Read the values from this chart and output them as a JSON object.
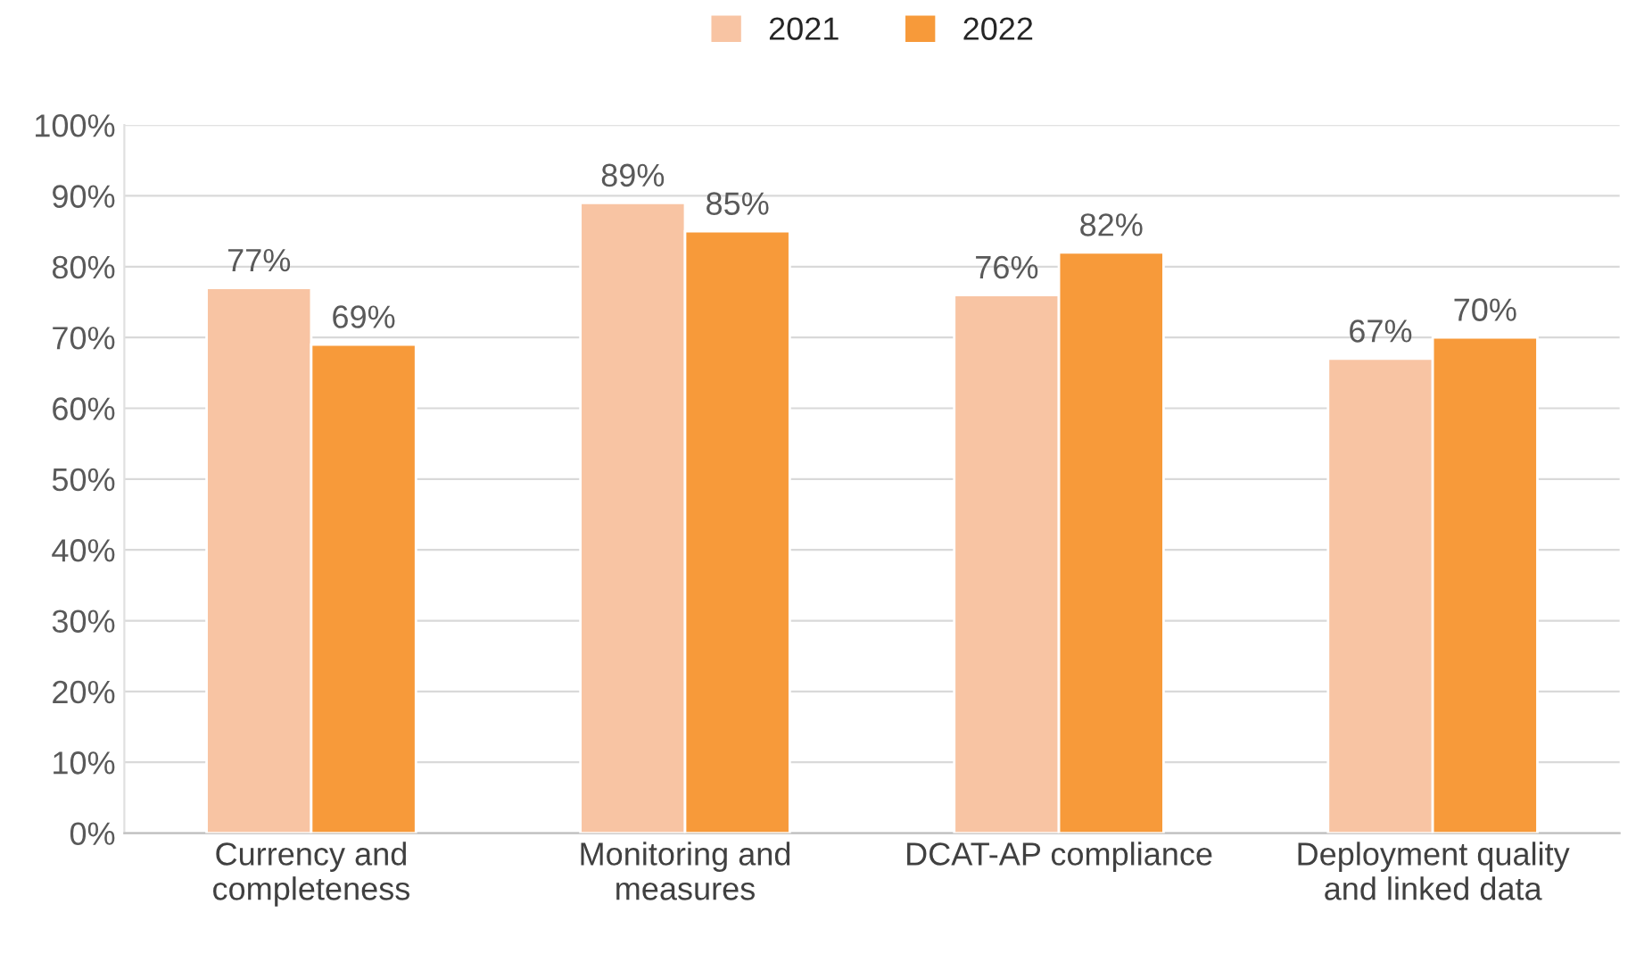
{
  "chart_data": {
    "type": "bar",
    "categories": [
      "Currency and\ncompleteness",
      "Monitoring and\nmeasures",
      "DCAT-AP compliance",
      "Deployment quality\nand linked data"
    ],
    "series": [
      {
        "name": "2021",
        "color": "#f8c4a3",
        "values": [
          77,
          89,
          76,
          67
        ],
        "value_labels": [
          "77%",
          "89%",
          "76%",
          "67%"
        ]
      },
      {
        "name": "2022",
        "color": "#f79a3a",
        "values": [
          69,
          85,
          82,
          70
        ],
        "value_labels": [
          "69%",
          "85%",
          "82%",
          "70%"
        ]
      }
    ],
    "ylim": [
      0,
      100
    ],
    "yticks": [
      {
        "value": 0,
        "label": "0%"
      },
      {
        "value": 10,
        "label": "10%"
      },
      {
        "value": 20,
        "label": "20%"
      },
      {
        "value": 30,
        "label": "30%"
      },
      {
        "value": 40,
        "label": "40%"
      },
      {
        "value": 50,
        "label": "50%"
      },
      {
        "value": 60,
        "label": "60%"
      },
      {
        "value": 70,
        "label": "70%"
      },
      {
        "value": 80,
        "label": "80%"
      },
      {
        "value": 90,
        "label": "90%"
      },
      {
        "value": 100,
        "label": "100%"
      }
    ],
    "grid": "y",
    "legend": "top"
  }
}
